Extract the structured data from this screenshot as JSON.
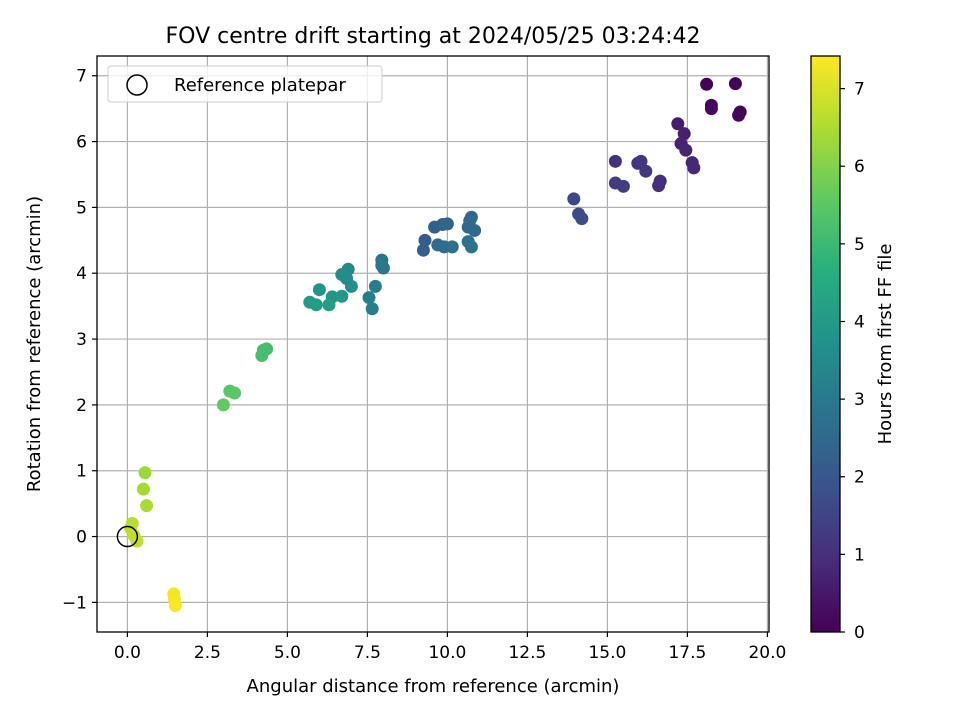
{
  "chart_data": {
    "type": "scatter",
    "title": "FOV centre drift starting at 2024/05/25 03:24:42",
    "xlabel": "Angular distance from reference (arcmin)",
    "ylabel": "Rotation from reference (arcmin)",
    "xlim": [
      -0.95,
      20.05
    ],
    "ylim": [
      -1.45,
      7.3
    ],
    "xticks": [
      0.0,
      2.5,
      5.0,
      7.5,
      10.0,
      12.5,
      15.0,
      17.5,
      20.0
    ],
    "xtick_labels": [
      "0.0",
      "2.5",
      "5.0",
      "7.5",
      "10.0",
      "12.5",
      "15.0",
      "17.5",
      "20.0"
    ],
    "yticks": [
      -1,
      0,
      1,
      2,
      3,
      4,
      5,
      6,
      7
    ],
    "ytick_labels": [
      "−1",
      "0",
      "1",
      "2",
      "3",
      "4",
      "5",
      "6",
      "7"
    ],
    "grid": true,
    "legend": {
      "placement": "top-left",
      "entries": [
        "Reference platepar"
      ]
    },
    "reference_point": {
      "x": 0.0,
      "y": 0.0
    },
    "colorbar": {
      "label": "Hours from first FF file",
      "min": 0,
      "max": 7.42,
      "ticks": [
        0,
        1,
        2,
        3,
        4,
        5,
        6,
        7
      ],
      "tick_labels": [
        "0",
        "1",
        "2",
        "3",
        "4",
        "5",
        "6",
        "7"
      ],
      "colormap": "viridis"
    },
    "points": [
      {
        "x": 18.1,
        "y": 6.87,
        "t": 0.05
      },
      {
        "x": 19.0,
        "y": 6.88,
        "t": 0.08
      },
      {
        "x": 18.25,
        "y": 6.55,
        "t": 0.15
      },
      {
        "x": 18.25,
        "y": 6.5,
        "t": 0.18
      },
      {
        "x": 19.15,
        "y": 6.45,
        "t": 0.1
      },
      {
        "x": 19.1,
        "y": 6.4,
        "t": 0.12
      },
      {
        "x": 17.2,
        "y": 6.27,
        "t": 0.6
      },
      {
        "x": 17.4,
        "y": 6.12,
        "t": 0.65
      },
      {
        "x": 17.3,
        "y": 5.97,
        "t": 0.7
      },
      {
        "x": 17.45,
        "y": 5.87,
        "t": 0.75
      },
      {
        "x": 17.65,
        "y": 5.68,
        "t": 0.8
      },
      {
        "x": 17.7,
        "y": 5.6,
        "t": 0.85
      },
      {
        "x": 15.25,
        "y": 5.7,
        "t": 1.05
      },
      {
        "x": 15.95,
        "y": 5.67,
        "t": 1.1
      },
      {
        "x": 16.05,
        "y": 5.7,
        "t": 1.15
      },
      {
        "x": 16.2,
        "y": 5.55,
        "t": 1.2
      },
      {
        "x": 15.25,
        "y": 5.37,
        "t": 1.25
      },
      {
        "x": 15.5,
        "y": 5.32,
        "t": 1.3
      },
      {
        "x": 16.65,
        "y": 5.4,
        "t": 0.95
      },
      {
        "x": 16.6,
        "y": 5.33,
        "t": 1.0
      },
      {
        "x": 13.95,
        "y": 5.13,
        "t": 1.6
      },
      {
        "x": 14.1,
        "y": 4.9,
        "t": 1.65
      },
      {
        "x": 14.2,
        "y": 4.83,
        "t": 1.7
      },
      {
        "x": 9.3,
        "y": 4.5,
        "t": 2.15
      },
      {
        "x": 9.25,
        "y": 4.35,
        "t": 2.2
      },
      {
        "x": 9.6,
        "y": 4.7,
        "t": 2.3
      },
      {
        "x": 9.85,
        "y": 4.74,
        "t": 2.35
      },
      {
        "x": 10.0,
        "y": 4.75,
        "t": 2.4
      },
      {
        "x": 10.7,
        "y": 4.8,
        "t": 2.45
      },
      {
        "x": 10.75,
        "y": 4.85,
        "t": 2.5
      },
      {
        "x": 10.65,
        "y": 4.7,
        "t": 2.5
      },
      {
        "x": 10.85,
        "y": 4.65,
        "t": 2.55
      },
      {
        "x": 9.7,
        "y": 4.43,
        "t": 2.6
      },
      {
        "x": 9.9,
        "y": 4.4,
        "t": 2.65
      },
      {
        "x": 10.15,
        "y": 4.4,
        "t": 2.7
      },
      {
        "x": 10.65,
        "y": 4.48,
        "t": 2.75
      },
      {
        "x": 10.75,
        "y": 4.4,
        "t": 2.8
      },
      {
        "x": 7.95,
        "y": 4.2,
        "t": 2.9
      },
      {
        "x": 8.0,
        "y": 4.08,
        "t": 2.95
      },
      {
        "x": 7.95,
        "y": 4.12,
        "t": 3.0
      },
      {
        "x": 7.75,
        "y": 3.8,
        "t": 3.05
      },
      {
        "x": 7.55,
        "y": 3.63,
        "t": 3.1
      },
      {
        "x": 7.65,
        "y": 3.46,
        "t": 3.15
      },
      {
        "x": 6.9,
        "y": 4.06,
        "t": 3.5
      },
      {
        "x": 6.7,
        "y": 3.98,
        "t": 3.55
      },
      {
        "x": 6.85,
        "y": 3.92,
        "t": 3.6
      },
      {
        "x": 7.0,
        "y": 3.8,
        "t": 3.65
      },
      {
        "x": 6.0,
        "y": 3.75,
        "t": 3.8
      },
      {
        "x": 6.4,
        "y": 3.64,
        "t": 3.85
      },
      {
        "x": 6.7,
        "y": 3.65,
        "t": 3.9
      },
      {
        "x": 5.7,
        "y": 3.56,
        "t": 4.0
      },
      {
        "x": 5.9,
        "y": 3.52,
        "t": 4.05
      },
      {
        "x": 6.3,
        "y": 3.52,
        "t": 4.1
      },
      {
        "x": 4.25,
        "y": 2.83,
        "t": 5.1
      },
      {
        "x": 4.35,
        "y": 2.85,
        "t": 5.15
      },
      {
        "x": 4.2,
        "y": 2.75,
        "t": 5.2
      },
      {
        "x": 3.2,
        "y": 2.21,
        "t": 5.45
      },
      {
        "x": 3.35,
        "y": 2.18,
        "t": 5.5
      },
      {
        "x": 3.0,
        "y": 2.0,
        "t": 5.6
      },
      {
        "x": 0.55,
        "y": 0.97,
        "t": 6.3
      },
      {
        "x": 0.5,
        "y": 0.72,
        "t": 6.4
      },
      {
        "x": 0.6,
        "y": 0.47,
        "t": 6.45
      },
      {
        "x": 0.15,
        "y": 0.2,
        "t": 6.6
      },
      {
        "x": 0.1,
        "y": 0.13,
        "t": 6.65
      },
      {
        "x": 0.2,
        "y": 0.02,
        "t": 6.7
      },
      {
        "x": 0.3,
        "y": -0.07,
        "t": 6.75
      },
      {
        "x": 1.45,
        "y": -0.87,
        "t": 7.3
      },
      {
        "x": 1.47,
        "y": -0.95,
        "t": 7.35
      },
      {
        "x": 1.5,
        "y": -1.05,
        "t": 7.4
      }
    ]
  }
}
